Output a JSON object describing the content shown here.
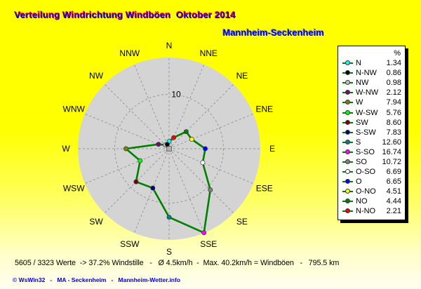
{
  "header": {
    "title": "Verteilung Windrichtung Windböen  Oktober 2014",
    "subtitle": "Mannheim-Seckenheim"
  },
  "footer": {
    "status_line": "5605 / 3323 Werte  -> 37.2% Windstille   -   Ø 4.5km/h  -  Max. 40.2km/h = Windböen   -   795.5 km",
    "credit_line": "© WsWin32   -   MA - Seckenheim   -   Mannheim-Wetter.info"
  },
  "colors": {
    "background_top": "#ffff00",
    "background_bottom": "#fffdf0",
    "title_text": "#0000dd",
    "title_shadow": "#ff0000",
    "subtitle_text": "#0000bb",
    "subtitle_shadow": "#7788ff",
    "chart_disc": "#d4d4d4",
    "chart_grid": "#989898",
    "polygon_line": "#008000",
    "status_text": "#000000",
    "credit_text": "#0000dd",
    "legend_bg": "#ffffff",
    "legend_border": "#000000"
  },
  "chart_data": {
    "type": "radar",
    "title": "Verteilung Windrichtung Windböen Oktober 2014",
    "station": "Mannheim-Seckenheim",
    "unit": "%",
    "axis_labels": [
      "N",
      "NNE",
      "NE",
      "ENE",
      "E",
      "ESE",
      "SE",
      "SSE",
      "S",
      "SSW",
      "SW",
      "WSW",
      "W",
      "WNW",
      "NW",
      "NNW"
    ],
    "rings": [
      10
    ],
    "ring_label": "10",
    "outer_value": 17.2,
    "grid": "dashed",
    "legend_position": "right",
    "points": [
      {
        "axis": "N",
        "name": "N",
        "value": 1.34,
        "color": "#00FFFF"
      },
      {
        "axis": "NNE",
        "name": "N-NO",
        "value": 2.21,
        "color": "#FF0000"
      },
      {
        "axis": "NE",
        "name": "NO",
        "value": 4.44,
        "color": "#008000"
      },
      {
        "axis": "ENE",
        "name": "O-NO",
        "value": 4.51,
        "color": "#FFFF00"
      },
      {
        "axis": "E",
        "name": "O",
        "value": 6.65,
        "color": "#0000FF"
      },
      {
        "axis": "ESE",
        "name": "O-SO",
        "value": 6.69,
        "color": "#FFFFFF"
      },
      {
        "axis": "SE",
        "name": "SO",
        "value": 10.72,
        "color": "#808080"
      },
      {
        "axis": "SSE",
        "name": "S-SO",
        "value": 16.74,
        "color": "#FF00FF"
      },
      {
        "axis": "S",
        "name": "S",
        "value": 12.6,
        "color": "#008080"
      },
      {
        "axis": "SSW",
        "name": "S-SW",
        "value": 7.83,
        "color": "#000080"
      },
      {
        "axis": "SW",
        "name": "SW",
        "value": 8.6,
        "color": "#800000"
      },
      {
        "axis": "WSW",
        "name": "W-SW",
        "value": 5.76,
        "color": "#00FF00"
      },
      {
        "axis": "W",
        "name": "W",
        "value": 7.94,
        "color": "#808000"
      },
      {
        "axis": "WNW",
        "name": "W-NW",
        "value": 2.12,
        "color": "#800080"
      },
      {
        "axis": "NW",
        "name": "NW",
        "value": 0.98,
        "color": "#C0C0C0"
      },
      {
        "axis": "NNW",
        "name": "N-NW",
        "value": 0.86,
        "color": "#000000"
      }
    ],
    "legend": {
      "header": "%",
      "order": [
        "N",
        "N-NW",
        "NW",
        "W-NW",
        "W",
        "W-SW",
        "SW",
        "S-SW",
        "S",
        "S-SO",
        "SO",
        "O-SO",
        "O",
        "O-NO",
        "NO",
        "N-NO"
      ]
    }
  }
}
